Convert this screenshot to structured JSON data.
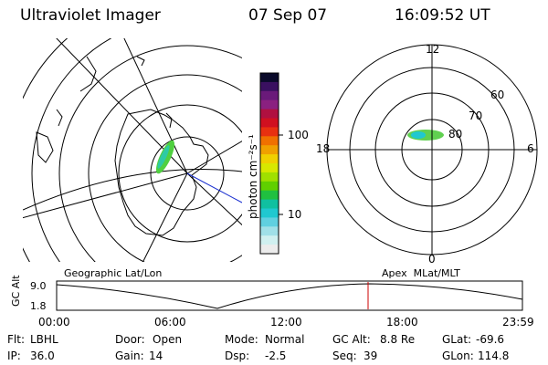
{
  "header": {
    "instrument": "Ultraviolet Imager",
    "date": "07 Sep 07",
    "time": "16:09:52 UT"
  },
  "colorbar": {
    "label": "photon cm⁻²s⁻¹",
    "ticks": [
      "100",
      "10"
    ],
    "colors": [
      "#0a0a2a",
      "#3a1060",
      "#6a1a7a",
      "#8a2080",
      "#b01040",
      "#d01020",
      "#e83010",
      "#f07000",
      "#f0a000",
      "#f0d000",
      "#d8e800",
      "#a0e000",
      "#60d000",
      "#20c040",
      "#10c0a0",
      "#20c8d0",
      "#60d0e0",
      "#a0e0e8",
      "#d0f0f0",
      "#ececec"
    ]
  },
  "left_panel": {
    "caption": "Geographic Lat/Lon"
  },
  "right_panel": {
    "caption": "Apex  MLat/MLT",
    "mlt_labels": [
      "12",
      "18",
      "6",
      "0"
    ],
    "mlat_labels": [
      "60",
      "70",
      "80"
    ]
  },
  "timeline": {
    "ylabel": "GC Alt",
    "yticks": [
      "9.0",
      "1.8"
    ],
    "xticks": [
      "00:00",
      "06:00",
      "12:00",
      "18:00",
      "23:59"
    ],
    "marker_color": "#cc0000"
  },
  "status": {
    "row1": [
      {
        "label": "Flt:",
        "value": "LBHL"
      },
      {
        "label": "Door:",
        "value": "Open"
      },
      {
        "label": "Mode:",
        "value": "Normal"
      },
      {
        "label": "GC Alt:",
        "value": "8.8 Re"
      },
      {
        "label": "GLat:",
        "value": "-69.6"
      }
    ],
    "row2": [
      {
        "label": "IP:",
        "value": "36.0"
      },
      {
        "label": "Gain:",
        "value": "14"
      },
      {
        "label": "Dsp:",
        "value": "-2.5"
      },
      {
        "label": "Seq:",
        "value": "39"
      },
      {
        "label": "GLon:",
        "value": "114.8"
      }
    ]
  }
}
